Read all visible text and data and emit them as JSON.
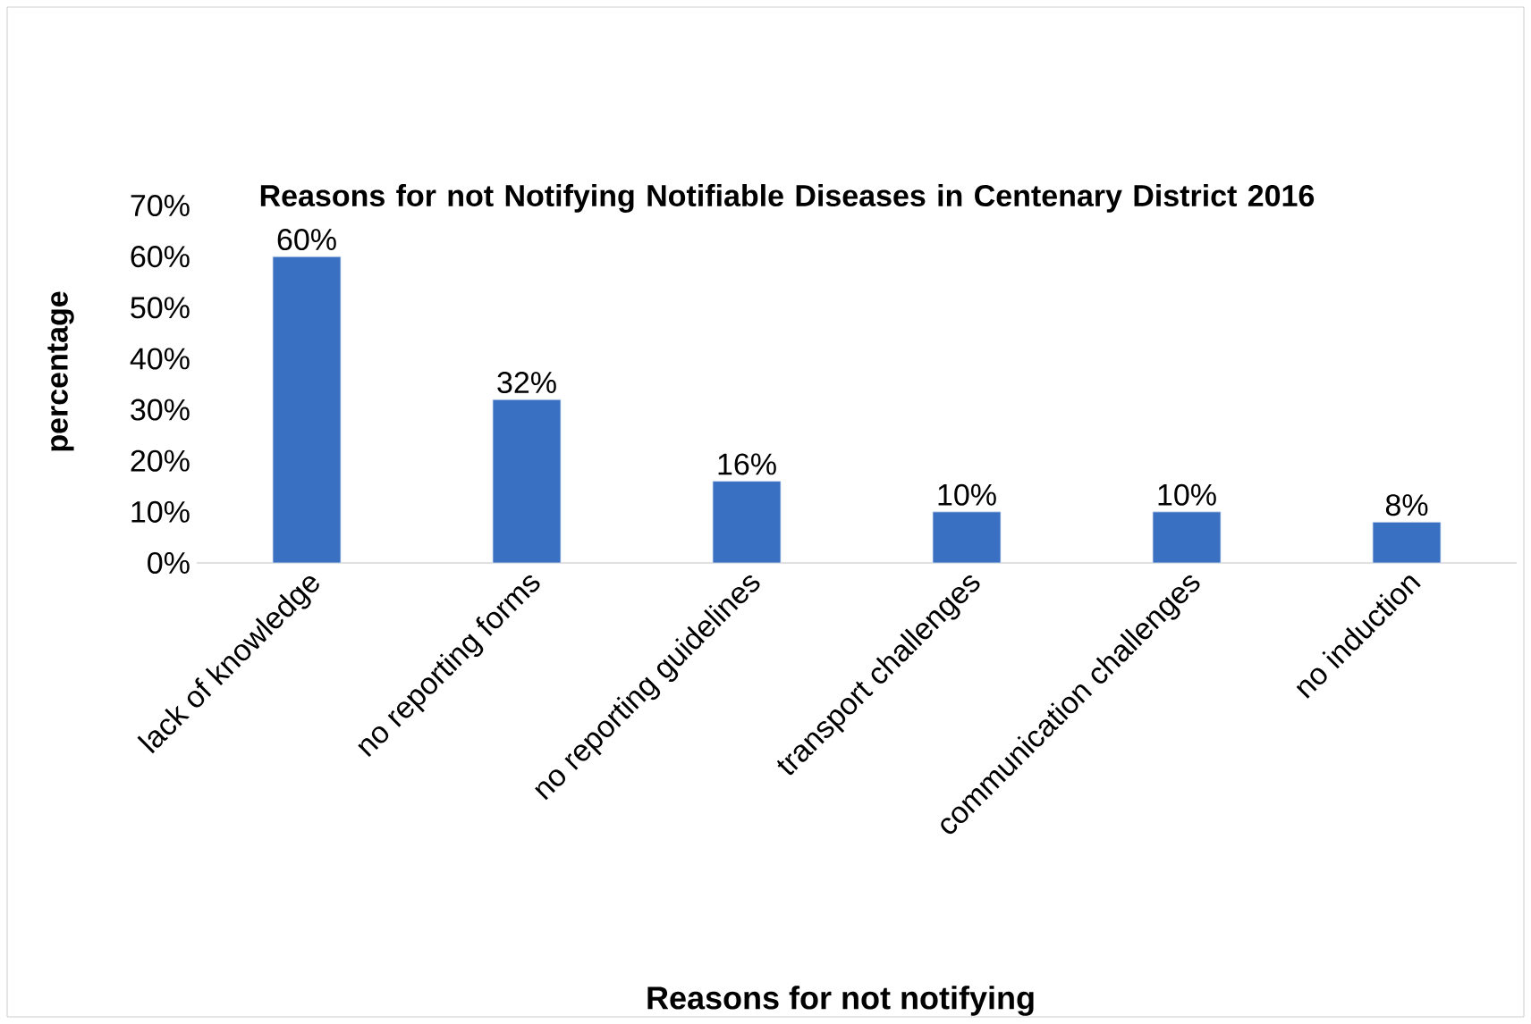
{
  "chart_data": {
    "type": "bar",
    "title": "Reasons for not Notifying Notifiable Diseases in Centenary District 2016",
    "xlabel": "Reasons for not notifying",
    "ylabel": "percentage",
    "categories": [
      "lack of knowledge",
      "no reporting forms",
      "no reporting guidelines",
      "transport challenges",
      "communication challenges",
      "no induction"
    ],
    "values": [
      60,
      32,
      16,
      10,
      10,
      8
    ],
    "value_labels": [
      "60%",
      "32%",
      "16%",
      "10%",
      "10%",
      "8%"
    ],
    "color": "#3a70c2",
    "ylim": [
      0,
      70
    ],
    "yticks": [
      {
        "value": 0,
        "label": "0%"
      },
      {
        "value": 10,
        "label": "10%"
      },
      {
        "value": 20,
        "label": "20%"
      },
      {
        "value": 30,
        "label": "30%"
      },
      {
        "value": 40,
        "label": "40%"
      },
      {
        "value": 50,
        "label": "50%"
      },
      {
        "value": 60,
        "label": "60%"
      },
      {
        "value": 70,
        "label": "70%"
      }
    ],
    "grid": false
  }
}
